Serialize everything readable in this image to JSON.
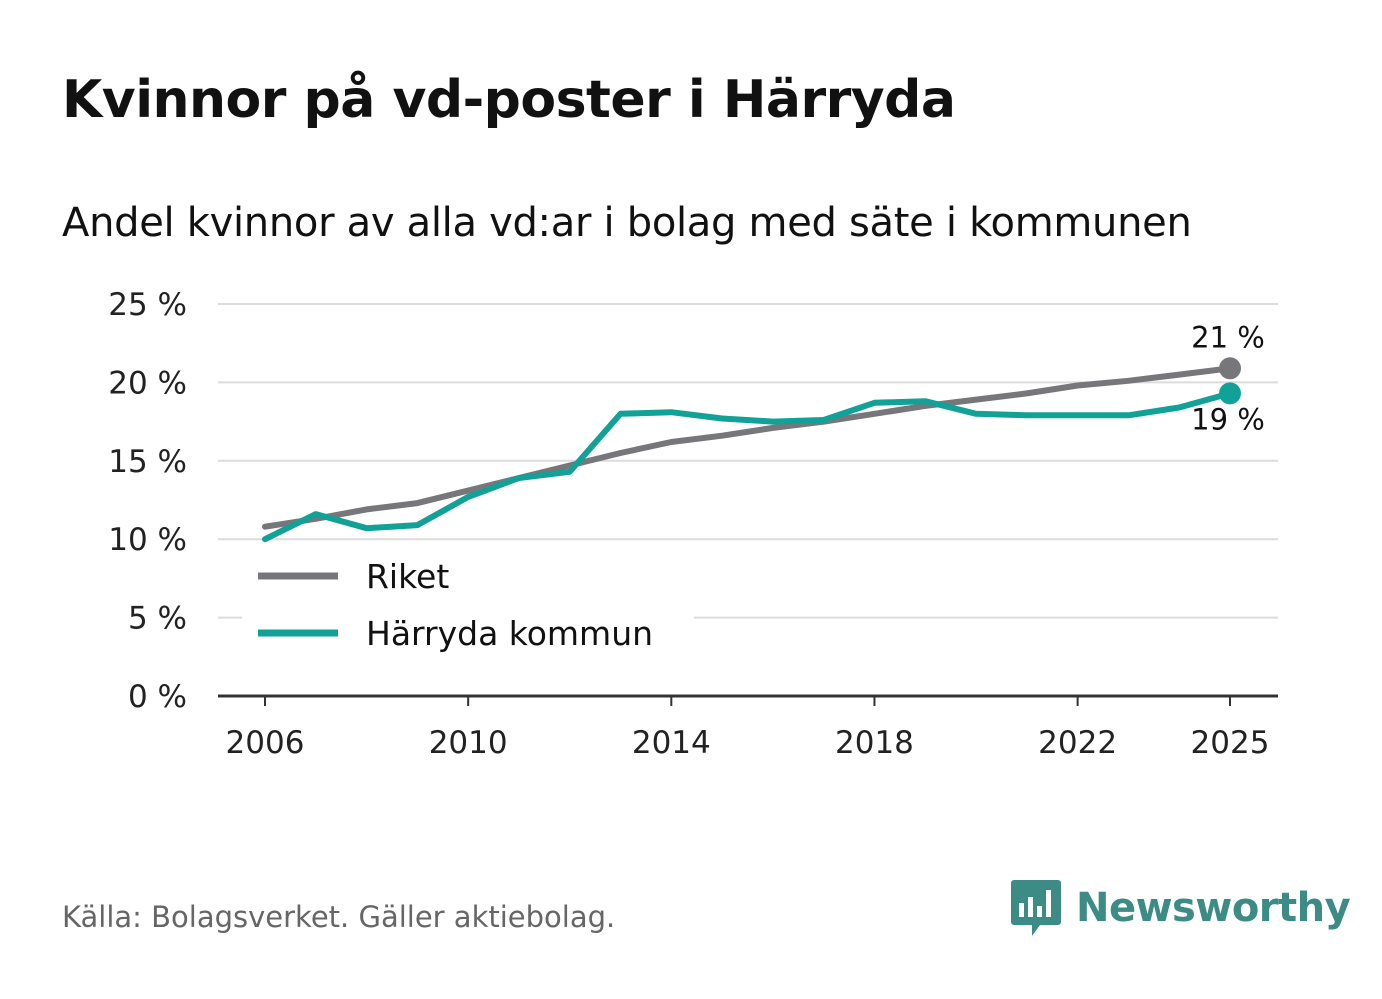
{
  "title": "Kvinnor på vd-poster i Härryda",
  "subtitle": "Andel kvinnor av alla vd:ar i bolag med säte i kommunen",
  "source": "Källa: Bolagsverket. Gäller aktiebolag.",
  "logo": {
    "name": "Newsworthy",
    "color": "#3d8b85"
  },
  "chart_data": {
    "type": "line",
    "x": [
      2006,
      2007,
      2008,
      2009,
      2010,
      2011,
      2012,
      2013,
      2014,
      2015,
      2016,
      2017,
      2018,
      2019,
      2020,
      2021,
      2022,
      2023,
      2024,
      2025
    ],
    "series": [
      {
        "name": "Riket",
        "color": "#77767b",
        "values": [
          10.8,
          11.3,
          11.9,
          12.3,
          13.1,
          13.9,
          14.7,
          15.5,
          16.2,
          16.6,
          17.1,
          17.5,
          18.0,
          18.5,
          18.9,
          19.3,
          19.8,
          20.1,
          20.5,
          20.9
        ],
        "end_label": "21 %"
      },
      {
        "name": "Härryda kommun",
        "color": "#12a197",
        "values": [
          10.0,
          11.6,
          10.7,
          10.9,
          12.7,
          13.9,
          14.3,
          18.0,
          18.1,
          17.7,
          17.5,
          17.6,
          18.7,
          18.8,
          18.0,
          17.9,
          17.9,
          17.9,
          18.4,
          19.3
        ],
        "end_label": "19 %"
      }
    ],
    "xticks": [
      2006,
      2010,
      2014,
      2018,
      2022,
      2025
    ],
    "yticks": [
      0,
      5,
      10,
      15,
      20,
      25
    ],
    "ytick_labels": [
      "0 %",
      "5 %",
      "10 %",
      "15 %",
      "20 %",
      "25 %"
    ],
    "ylim": [
      0,
      25
    ],
    "xlim": [
      2006,
      2025
    ],
    "grid": true,
    "legend": "bottom-left"
  }
}
